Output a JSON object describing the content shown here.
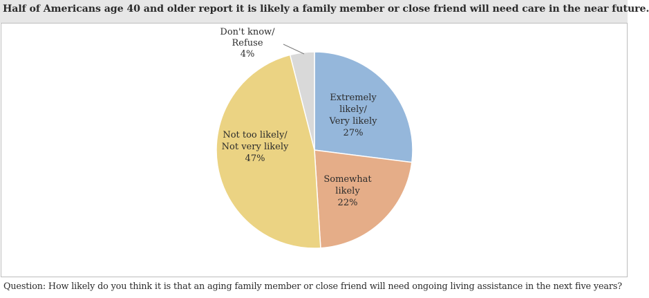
{
  "title": "Half of Americans age 40 and older report it is likely a family member or close friend will need care in the near future.",
  "question": "Question: How likely do you think it is that an aging family member or close friend will need ongoing living assistance in the next five years?",
  "chart_data": {
    "type": "pie",
    "title": "",
    "slices": [
      {
        "name": "Extremely likely/ Very likely",
        "label_lines": [
          "Extremely",
          "likely/",
          "Very likely"
        ],
        "value": 27,
        "value_label": "27%",
        "color": "#95b7db"
      },
      {
        "name": "Somewhat likely",
        "label_lines": [
          "Somewhat",
          "likely"
        ],
        "value": 22,
        "value_label": "22%",
        "color": "#e5ad88"
      },
      {
        "name": "Not too likely/ Not very likely",
        "label_lines": [
          "Not too likely/",
          "Not very likely"
        ],
        "value": 47,
        "value_label": "47%",
        "color": "#ebd383"
      },
      {
        "name": "Don't know/ Refuse",
        "label_lines": [
          "Don't know/",
          "Refuse"
        ],
        "value": 4,
        "value_label": "4%",
        "color": "#d9d9d9"
      }
    ],
    "start_angle": "12 o'clock",
    "direction": "clockwise",
    "legend": "none"
  }
}
